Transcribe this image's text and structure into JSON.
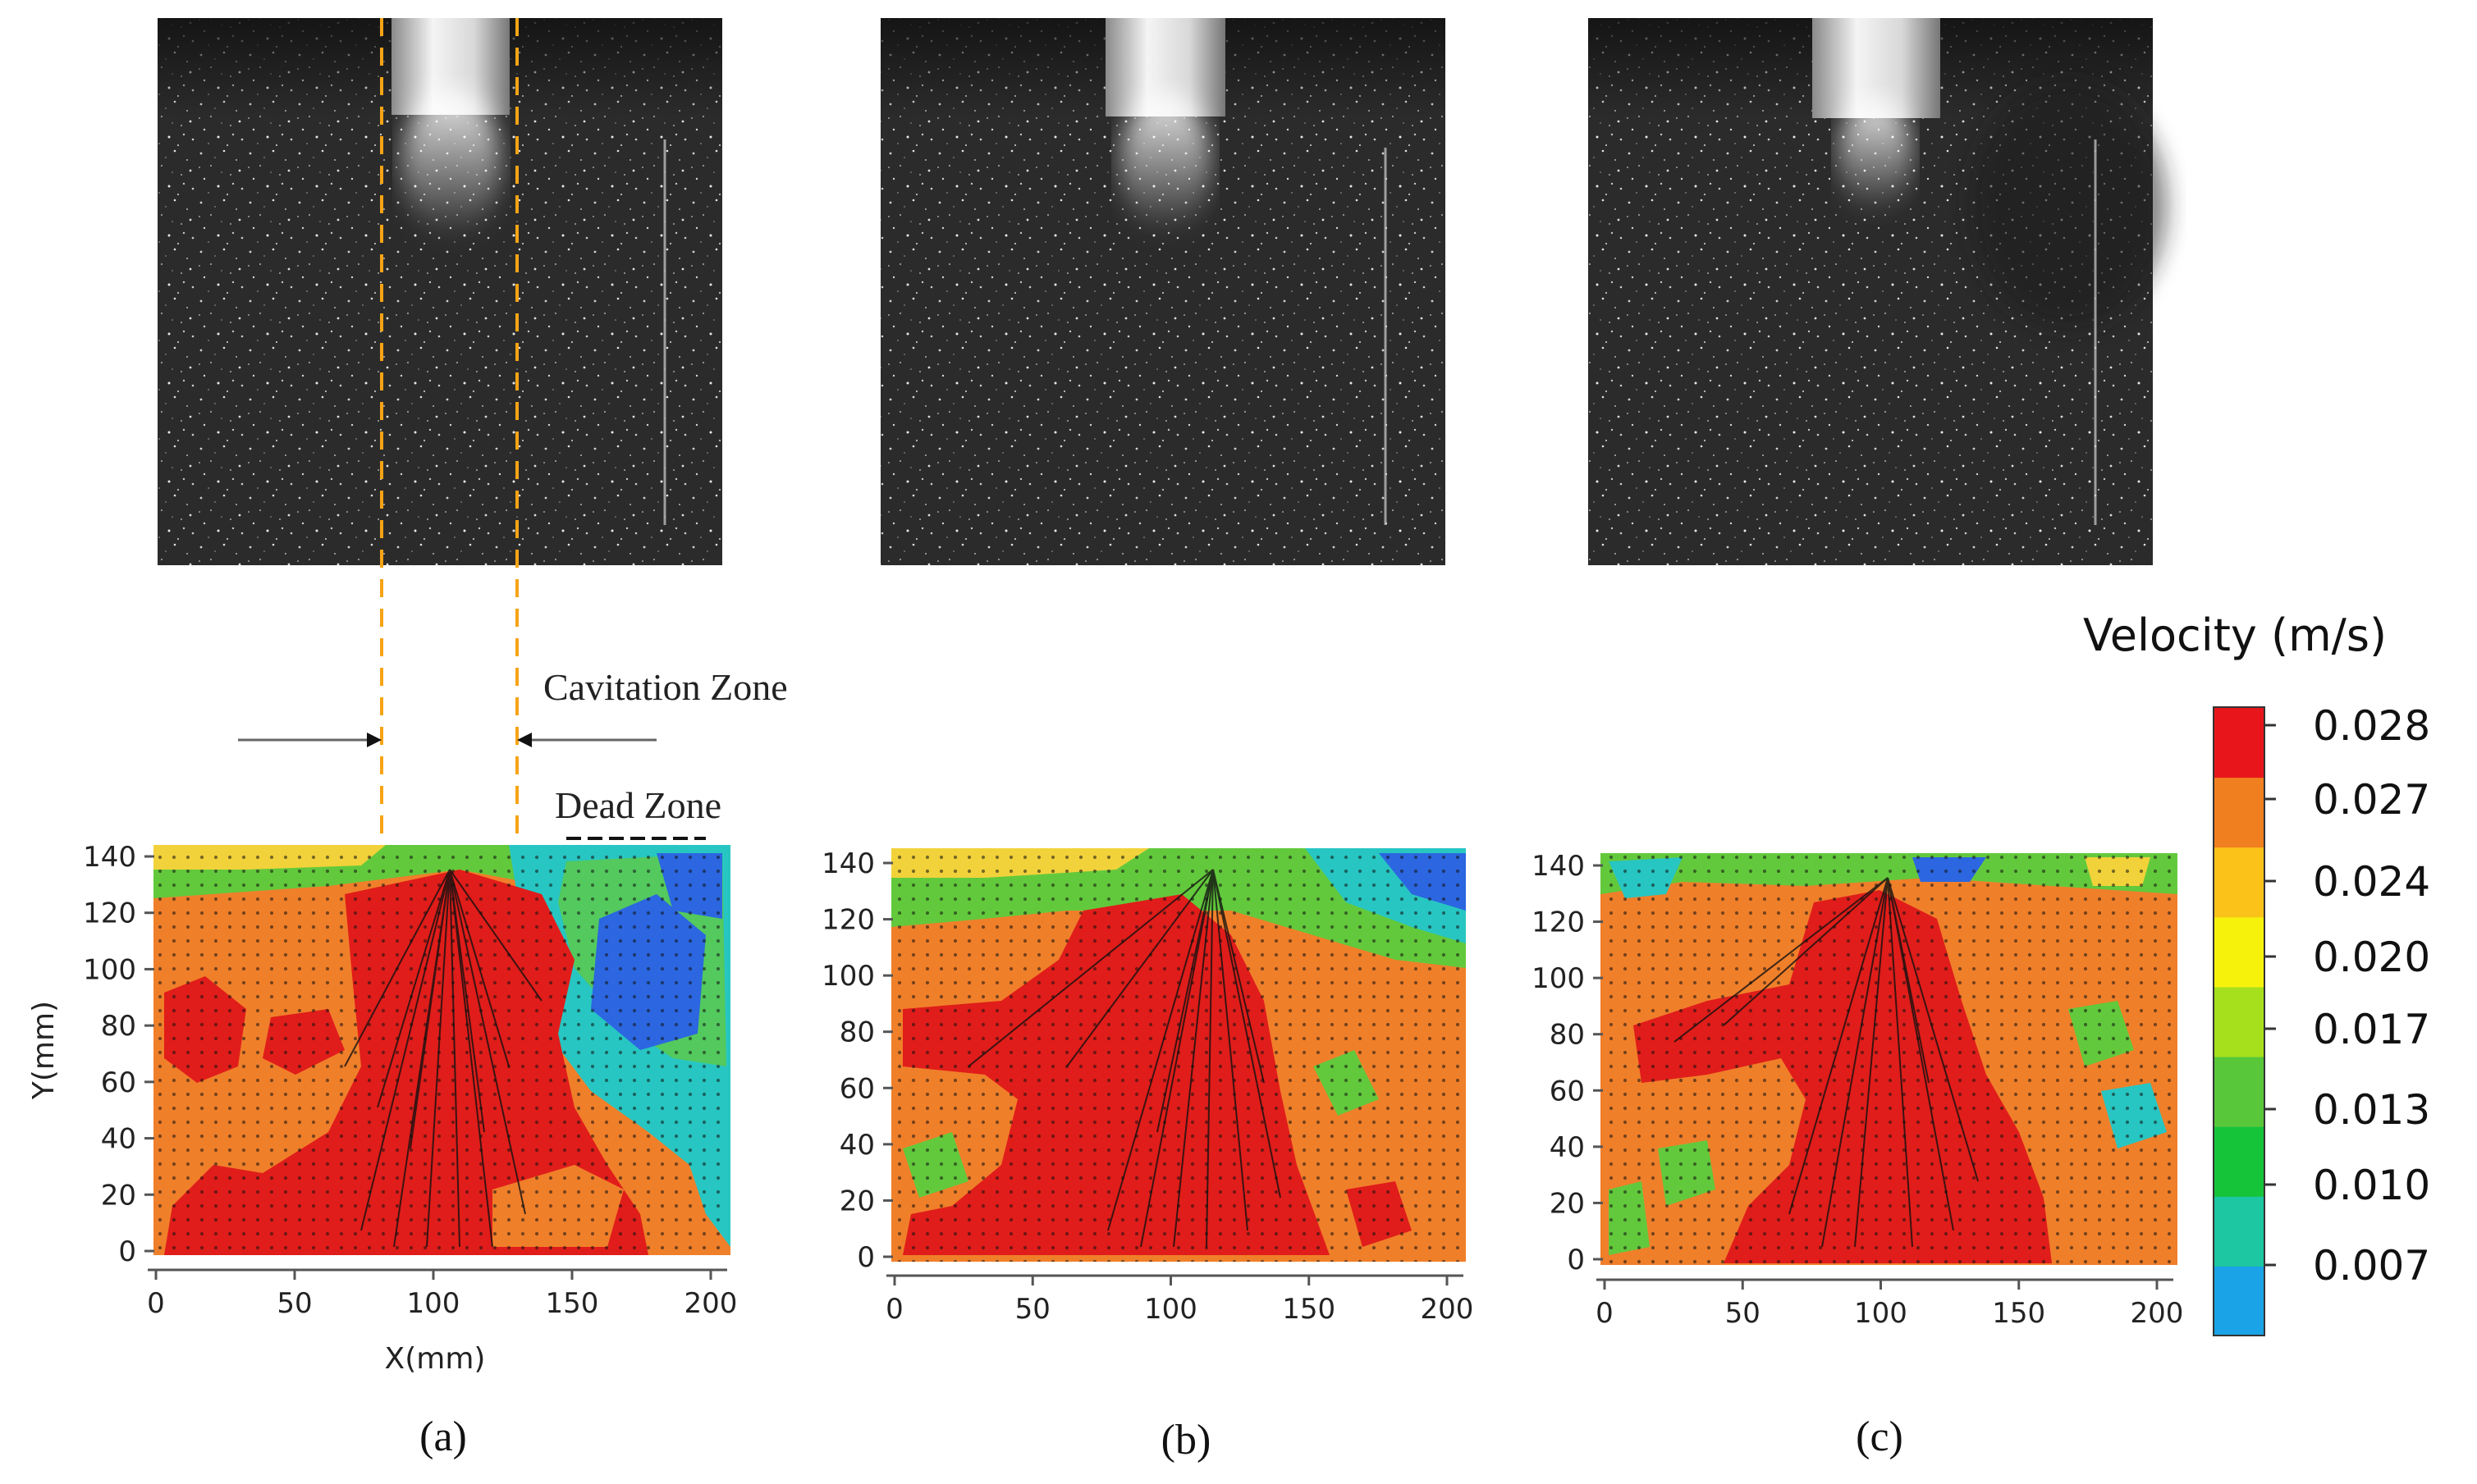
{
  "figure": {
    "panels": [
      {
        "id": "a",
        "caption": "(a)",
        "x_axis_label": "X(mm)",
        "y_axis_label": "Y(mm)"
      },
      {
        "id": "b",
        "caption": "(b)",
        "x_axis_label": "",
        "y_axis_label": ""
      },
      {
        "id": "c",
        "caption": "(c)",
        "x_axis_label": "",
        "y_axis_label": ""
      }
    ],
    "x_ticks": [
      "0",
      "50",
      "100",
      "150",
      "200"
    ],
    "y_ticks": [
      "0",
      "20",
      "40",
      "60",
      "80",
      "100",
      "120",
      "140"
    ],
    "annotations": {
      "cavitation_zone": "Cavitation Zone",
      "dead_zone": "Dead Zone"
    },
    "colorbar": {
      "title": "Velocity (m/s)",
      "labels": [
        "0.028",
        "0.027",
        "0.024",
        "0.020",
        "0.017",
        "0.013",
        "0.010",
        "0.007"
      ],
      "colors": [
        "#e8161a",
        "#f07f20",
        "#fbc21a",
        "#f7f20c",
        "#a6e01d",
        "#58c83a",
        "#16c43a",
        "#1dc7a2",
        "#1aa3e6"
      ]
    },
    "colors": {
      "red": "#e01d1a",
      "orange": "#f07f2a",
      "yellow": "#f2d23a",
      "green": "#63c93c",
      "cyan": "#27c6c2",
      "blue": "#2c66e0",
      "guide": "#f6a416"
    }
  },
  "chart_data": [
    {
      "type": "heatmap",
      "panel": "(a)",
      "title": "",
      "xlabel": "X(mm)",
      "ylabel": "Y(mm)",
      "xlim": [
        0,
        200
      ],
      "ylim": [
        0,
        140
      ],
      "colorbar_label": "Velocity (m/s)",
      "vrange": [
        0.007,
        0.028
      ],
      "dead_zone_x": [
        130,
        205
      ]
    },
    {
      "type": "heatmap",
      "panel": "(b)",
      "title": "",
      "xlabel": "",
      "ylabel": "",
      "xlim": [
        0,
        200
      ],
      "ylim": [
        0,
        140
      ],
      "colorbar_label": "Velocity (m/s)",
      "vrange": [
        0.007,
        0.028
      ]
    },
    {
      "type": "heatmap",
      "panel": "(c)",
      "title": "",
      "xlabel": "",
      "ylabel": "",
      "xlim": [
        0,
        200
      ],
      "ylim": [
        0,
        140
      ],
      "colorbar_label": "Velocity (m/s)",
      "vrange": [
        0.007,
        0.028
      ]
    }
  ]
}
